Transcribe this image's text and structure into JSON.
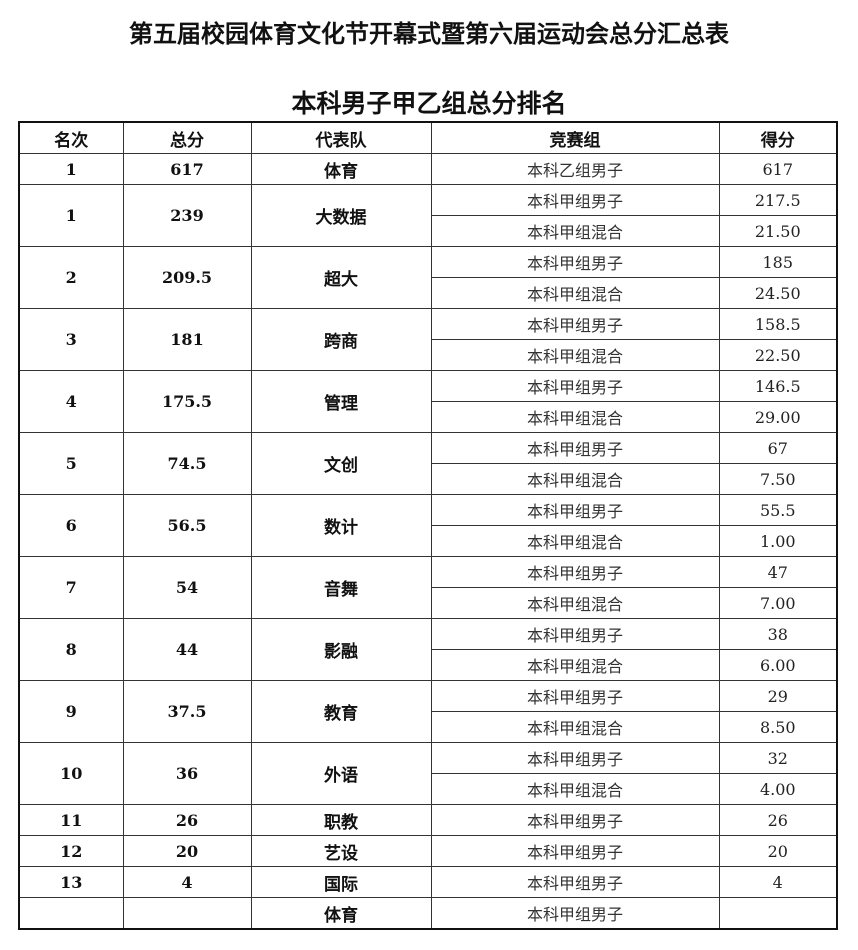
{
  "title": "第五届校园体育文化节开幕式暨第六届运动会总分汇总表",
  "subtitle": "本科男子甲乙组总分排名",
  "headers": [
    "名次",
    "总分",
    "代表队",
    "竞赛组",
    "得分"
  ],
  "rows": [
    {
      "rank": "1",
      "total": "617",
      "team": "体育",
      "entries": [
        {
          "group": "本科乙组男子",
          "score": "617"
        }
      ]
    },
    {
      "rank": "1",
      "total": "239",
      "team": "大数据",
      "entries": [
        {
          "group": "本科甲组男子",
          "score": "217.5"
        },
        {
          "group": "本科甲组混合",
          "score": "21.50"
        }
      ]
    },
    {
      "rank": "2",
      "total": "209.5",
      "team": "超大",
      "entries": [
        {
          "group": "本科甲组男子",
          "score": "185"
        },
        {
          "group": "本科甲组混合",
          "score": "24.50"
        }
      ]
    },
    {
      "rank": "3",
      "total": "181",
      "team": "跨商",
      "entries": [
        {
          "group": "本科甲组男子",
          "score": "158.5"
        },
        {
          "group": "本科甲组混合",
          "score": "22.50"
        }
      ]
    },
    {
      "rank": "4",
      "total": "175.5",
      "team": "管理",
      "entries": [
        {
          "group": "本科甲组男子",
          "score": "146.5"
        },
        {
          "group": "本科甲组混合",
          "score": "29.00"
        }
      ]
    },
    {
      "rank": "5",
      "total": "74.5",
      "team": "文创",
      "entries": [
        {
          "group": "本科甲组男子",
          "score": "67"
        },
        {
          "group": "本科甲组混合",
          "score": "7.50"
        }
      ]
    },
    {
      "rank": "6",
      "total": "56.5",
      "team": "数计",
      "entries": [
        {
          "group": "本科甲组男子",
          "score": "55.5"
        },
        {
          "group": "本科甲组混合",
          "score": "1.00"
        }
      ]
    },
    {
      "rank": "7",
      "total": "54",
      "team": "音舞",
      "entries": [
        {
          "group": "本科甲组男子",
          "score": "47"
        },
        {
          "group": "本科甲组混合",
          "score": "7.00"
        }
      ]
    },
    {
      "rank": "8",
      "total": "44",
      "team": "影融",
      "entries": [
        {
          "group": "本科甲组男子",
          "score": "38"
        },
        {
          "group": "本科甲组混合",
          "score": "6.00"
        }
      ]
    },
    {
      "rank": "9",
      "total": "37.5",
      "team": "教育",
      "entries": [
        {
          "group": "本科甲组男子",
          "score": "29"
        },
        {
          "group": "本科甲组混合",
          "score": "8.50"
        }
      ]
    },
    {
      "rank": "10",
      "total": "36",
      "team": "外语",
      "entries": [
        {
          "group": "本科甲组男子",
          "score": "32"
        },
        {
          "group": "本科甲组混合",
          "score": "4.00"
        }
      ]
    },
    {
      "rank": "11",
      "total": "26",
      "team": "职教",
      "entries": [
        {
          "group": "本科甲组男子",
          "score": "26"
        }
      ]
    },
    {
      "rank": "12",
      "total": "20",
      "team": "艺设",
      "entries": [
        {
          "group": "本科甲组男子",
          "score": "20"
        }
      ]
    },
    {
      "rank": "13",
      "total": "4",
      "team": "国际",
      "entries": [
        {
          "group": "本科甲组男子",
          "score": "4"
        }
      ]
    },
    {
      "rank": "",
      "total": "",
      "team": "体育",
      "entries": [
        {
          "group": "本科甲组男子",
          "score": ""
        }
      ]
    }
  ]
}
